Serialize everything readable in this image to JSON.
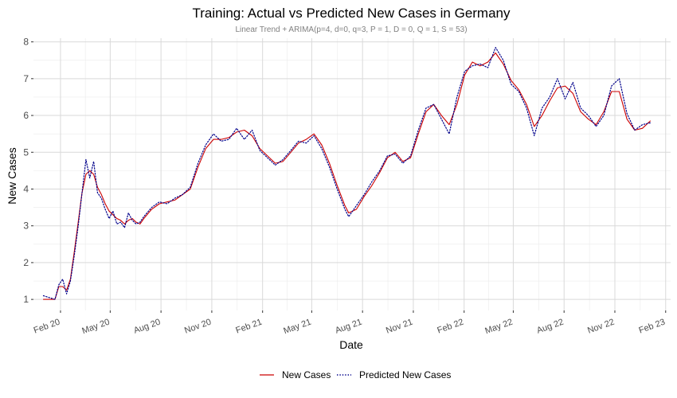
{
  "chart_data": {
    "type": "line",
    "title": "Training: Actual vs Predicted New Cases in Germany",
    "subtitle": "Linear Trend + ARIMA(p=4, d=0, q=3, P = 1, D = 0, Q = 1, S = 53)",
    "xlabel": "Date",
    "ylabel": "New Cases",
    "xlim": [
      "2019-12-14",
      "2023-02-10"
    ],
    "ylim": [
      0.7,
      8.1
    ],
    "grid": true,
    "legend": "bottom",
    "x_ticks": [
      {
        "date": "2020-02-01",
        "label": "Feb 20"
      },
      {
        "date": "2020-05-01",
        "label": "May 20"
      },
      {
        "date": "2020-08-01",
        "label": "Aug 20"
      },
      {
        "date": "2020-11-01",
        "label": "Nov 20"
      },
      {
        "date": "2021-02-01",
        "label": "Feb 21"
      },
      {
        "date": "2021-05-01",
        "label": "May 21"
      },
      {
        "date": "2021-08-01",
        "label": "Aug 21"
      },
      {
        "date": "2021-11-01",
        "label": "Nov 21"
      },
      {
        "date": "2022-02-01",
        "label": "Feb 22"
      },
      {
        "date": "2022-05-01",
        "label": "May 22"
      },
      {
        "date": "2022-08-01",
        "label": "Aug 22"
      },
      {
        "date": "2022-11-01",
        "label": "Nov 22"
      },
      {
        "date": "2023-02-01",
        "label": "Feb 23"
      }
    ],
    "y_ticks": [
      {
        "value": 1,
        "label": "1"
      },
      {
        "value": 2,
        "label": "2"
      },
      {
        "value": 3,
        "label": "3"
      },
      {
        "value": 4,
        "label": "4"
      },
      {
        "value": 5,
        "label": "5"
      },
      {
        "value": 6,
        "label": "6"
      },
      {
        "value": 7,
        "label": "7"
      },
      {
        "value": 8,
        "label": "8"
      }
    ],
    "series": [
      {
        "name": "New Cases",
        "color": "#cc0000",
        "dash": "solid",
        "points": [
          [
            "2020-01-01",
            1.0
          ],
          [
            "2020-01-22",
            1.0
          ],
          [
            "2020-01-29",
            1.35
          ],
          [
            "2020-02-05",
            1.35
          ],
          [
            "2020-02-12",
            1.25
          ],
          [
            "2020-02-19",
            1.55
          ],
          [
            "2020-02-26",
            2.3
          ],
          [
            "2020-03-04",
            3.1
          ],
          [
            "2020-03-11",
            3.9
          ],
          [
            "2020-03-18",
            4.4
          ],
          [
            "2020-03-25",
            4.5
          ],
          [
            "2020-04-01",
            4.4
          ],
          [
            "2020-04-08",
            4.05
          ],
          [
            "2020-04-15",
            3.85
          ],
          [
            "2020-04-22",
            3.6
          ],
          [
            "2020-04-29",
            3.4
          ],
          [
            "2020-05-06",
            3.3
          ],
          [
            "2020-05-13",
            3.2
          ],
          [
            "2020-05-20",
            3.15
          ],
          [
            "2020-05-27",
            3.05
          ],
          [
            "2020-06-03",
            3.15
          ],
          [
            "2020-06-10",
            3.2
          ],
          [
            "2020-06-17",
            3.1
          ],
          [
            "2020-06-24",
            3.05
          ],
          [
            "2020-07-01",
            3.2
          ],
          [
            "2020-07-15",
            3.45
          ],
          [
            "2020-07-29",
            3.6
          ],
          [
            "2020-08-12",
            3.65
          ],
          [
            "2020-08-26",
            3.7
          ],
          [
            "2020-09-09",
            3.85
          ],
          [
            "2020-09-23",
            4.0
          ],
          [
            "2020-10-07",
            4.6
          ],
          [
            "2020-10-21",
            5.1
          ],
          [
            "2020-11-04",
            5.35
          ],
          [
            "2020-11-18",
            5.35
          ],
          [
            "2020-12-02",
            5.4
          ],
          [
            "2020-12-16",
            5.55
          ],
          [
            "2020-12-30",
            5.6
          ],
          [
            "2021-01-13",
            5.45
          ],
          [
            "2021-01-27",
            5.1
          ],
          [
            "2021-02-10",
            4.9
          ],
          [
            "2021-02-24",
            4.7
          ],
          [
            "2021-03-10",
            4.75
          ],
          [
            "2021-03-24",
            5.0
          ],
          [
            "2021-04-07",
            5.25
          ],
          [
            "2021-04-21",
            5.35
          ],
          [
            "2021-05-05",
            5.5
          ],
          [
            "2021-05-19",
            5.2
          ],
          [
            "2021-06-02",
            4.7
          ],
          [
            "2021-06-16",
            4.1
          ],
          [
            "2021-06-30",
            3.55
          ],
          [
            "2021-07-07",
            3.35
          ],
          [
            "2021-07-21",
            3.45
          ],
          [
            "2021-08-04",
            3.8
          ],
          [
            "2021-08-18",
            4.1
          ],
          [
            "2021-09-01",
            4.45
          ],
          [
            "2021-09-15",
            4.85
          ],
          [
            "2021-09-29",
            5.0
          ],
          [
            "2021-10-13",
            4.75
          ],
          [
            "2021-10-27",
            4.85
          ],
          [
            "2021-11-10",
            5.5
          ],
          [
            "2021-11-24",
            6.1
          ],
          [
            "2021-12-08",
            6.3
          ],
          [
            "2021-12-22",
            6.0
          ],
          [
            "2022-01-05",
            5.75
          ],
          [
            "2022-01-19",
            6.3
          ],
          [
            "2022-02-02",
            7.1
          ],
          [
            "2022-02-16",
            7.45
          ],
          [
            "2022-03-02",
            7.35
          ],
          [
            "2022-03-16",
            7.45
          ],
          [
            "2022-03-30",
            7.7
          ],
          [
            "2022-04-13",
            7.4
          ],
          [
            "2022-04-27",
            6.95
          ],
          [
            "2022-05-11",
            6.7
          ],
          [
            "2022-05-25",
            6.3
          ],
          [
            "2022-06-08",
            5.7
          ],
          [
            "2022-06-22",
            6.0
          ],
          [
            "2022-07-06",
            6.4
          ],
          [
            "2022-07-20",
            6.75
          ],
          [
            "2022-08-03",
            6.8
          ],
          [
            "2022-08-17",
            6.6
          ],
          [
            "2022-08-31",
            6.1
          ],
          [
            "2022-09-14",
            5.9
          ],
          [
            "2022-09-28",
            5.75
          ],
          [
            "2022-10-12",
            6.1
          ],
          [
            "2022-10-26",
            6.65
          ],
          [
            "2022-11-09",
            6.65
          ],
          [
            "2022-11-23",
            5.9
          ],
          [
            "2022-12-07",
            5.6
          ],
          [
            "2022-12-21",
            5.65
          ],
          [
            "2023-01-04",
            5.85
          ]
        ]
      },
      {
        "name": "Predicted New Cases",
        "color": "#00008b",
        "dash": "dotted",
        "points": [
          [
            "2020-01-01",
            1.1
          ],
          [
            "2020-01-22",
            1.0
          ],
          [
            "2020-01-29",
            1.4
          ],
          [
            "2020-02-05",
            1.55
          ],
          [
            "2020-02-12",
            1.15
          ],
          [
            "2020-02-19",
            1.5
          ],
          [
            "2020-02-26",
            2.2
          ],
          [
            "2020-03-04",
            3.0
          ],
          [
            "2020-03-11",
            3.9
          ],
          [
            "2020-03-18",
            4.8
          ],
          [
            "2020-03-25",
            4.3
          ],
          [
            "2020-04-01",
            4.75
          ],
          [
            "2020-04-08",
            3.9
          ],
          [
            "2020-04-15",
            3.75
          ],
          [
            "2020-04-22",
            3.45
          ],
          [
            "2020-04-29",
            3.2
          ],
          [
            "2020-05-06",
            3.4
          ],
          [
            "2020-05-13",
            3.05
          ],
          [
            "2020-05-20",
            3.1
          ],
          [
            "2020-05-27",
            2.95
          ],
          [
            "2020-06-03",
            3.35
          ],
          [
            "2020-06-10",
            3.15
          ],
          [
            "2020-06-17",
            3.05
          ],
          [
            "2020-06-24",
            3.1
          ],
          [
            "2020-07-01",
            3.25
          ],
          [
            "2020-07-15",
            3.5
          ],
          [
            "2020-07-29",
            3.65
          ],
          [
            "2020-08-12",
            3.6
          ],
          [
            "2020-08-26",
            3.75
          ],
          [
            "2020-09-09",
            3.85
          ],
          [
            "2020-09-23",
            4.05
          ],
          [
            "2020-10-07",
            4.7
          ],
          [
            "2020-10-21",
            5.2
          ],
          [
            "2020-11-04",
            5.5
          ],
          [
            "2020-11-18",
            5.3
          ],
          [
            "2020-12-02",
            5.35
          ],
          [
            "2020-12-16",
            5.65
          ],
          [
            "2020-12-30",
            5.35
          ],
          [
            "2021-01-13",
            5.6
          ],
          [
            "2021-01-27",
            5.05
          ],
          [
            "2021-02-10",
            4.85
          ],
          [
            "2021-02-24",
            4.65
          ],
          [
            "2021-03-10",
            4.8
          ],
          [
            "2021-03-24",
            5.05
          ],
          [
            "2021-04-07",
            5.3
          ],
          [
            "2021-04-21",
            5.25
          ],
          [
            "2021-05-05",
            5.45
          ],
          [
            "2021-05-19",
            5.1
          ],
          [
            "2021-06-02",
            4.6
          ],
          [
            "2021-06-16",
            4.0
          ],
          [
            "2021-06-30",
            3.45
          ],
          [
            "2021-07-07",
            3.25
          ],
          [
            "2021-07-21",
            3.55
          ],
          [
            "2021-08-04",
            3.85
          ],
          [
            "2021-08-18",
            4.2
          ],
          [
            "2021-09-01",
            4.5
          ],
          [
            "2021-09-15",
            4.9
          ],
          [
            "2021-09-29",
            4.95
          ],
          [
            "2021-10-13",
            4.7
          ],
          [
            "2021-10-27",
            4.9
          ],
          [
            "2021-11-10",
            5.6
          ],
          [
            "2021-11-24",
            6.2
          ],
          [
            "2021-12-08",
            6.3
          ],
          [
            "2021-12-22",
            5.9
          ],
          [
            "2022-01-05",
            5.5
          ],
          [
            "2022-01-19",
            6.5
          ],
          [
            "2022-02-02",
            7.2
          ],
          [
            "2022-02-16",
            7.35
          ],
          [
            "2022-03-02",
            7.4
          ],
          [
            "2022-03-16",
            7.3
          ],
          [
            "2022-03-30",
            7.85
          ],
          [
            "2022-04-13",
            7.5
          ],
          [
            "2022-04-27",
            6.85
          ],
          [
            "2022-05-11",
            6.65
          ],
          [
            "2022-05-25",
            6.2
          ],
          [
            "2022-06-08",
            5.45
          ],
          [
            "2022-06-22",
            6.2
          ],
          [
            "2022-07-06",
            6.5
          ],
          [
            "2022-07-20",
            7.0
          ],
          [
            "2022-08-03",
            6.45
          ],
          [
            "2022-08-17",
            6.9
          ],
          [
            "2022-08-31",
            6.2
          ],
          [
            "2022-09-14",
            6.0
          ],
          [
            "2022-09-28",
            5.7
          ],
          [
            "2022-10-12",
            6.0
          ],
          [
            "2022-10-26",
            6.8
          ],
          [
            "2022-11-09",
            7.0
          ],
          [
            "2022-11-23",
            6.05
          ],
          [
            "2022-12-07",
            5.6
          ],
          [
            "2022-12-21",
            5.75
          ],
          [
            "2023-01-04",
            5.8
          ]
        ]
      }
    ]
  }
}
